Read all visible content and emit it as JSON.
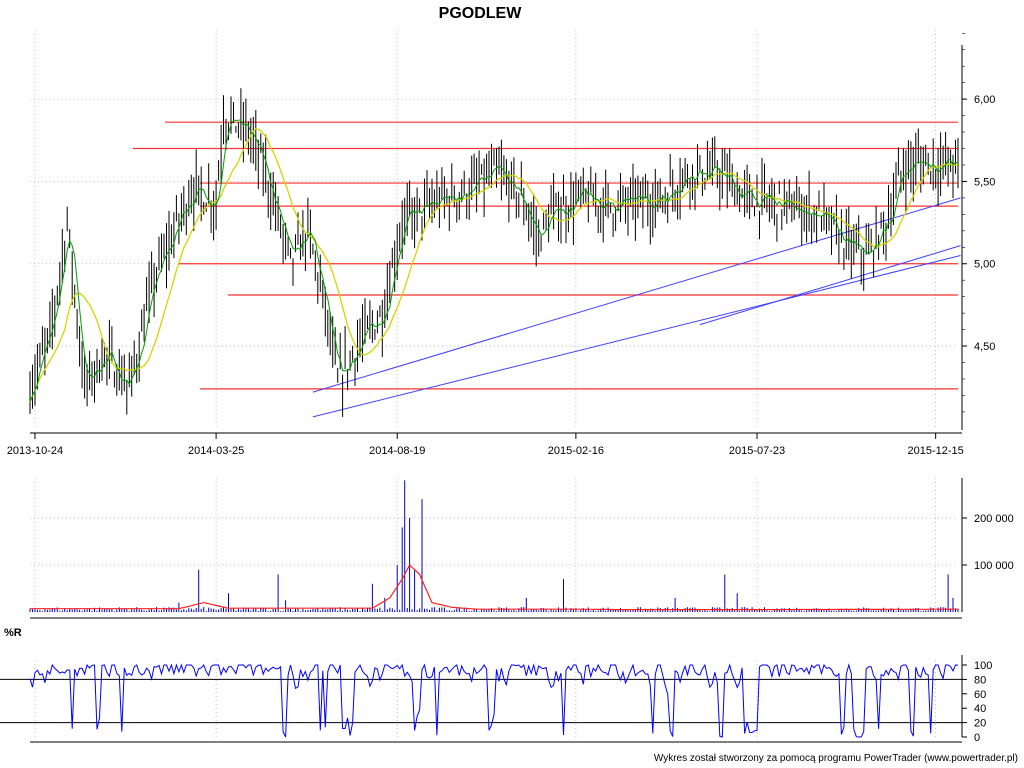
{
  "chart_data": [
    {
      "type": "ohlc",
      "title": "PGODLEW",
      "x_tick_labels": [
        "2013-10-24",
        "2014-03-25",
        "2014-08-19",
        "2015-02-16",
        "2015-07-23",
        "2015-12-15"
      ],
      "x_tick_index": [
        2,
        75,
        148,
        220,
        293,
        365
      ],
      "n_bars": 375,
      "y_tick_labels": [
        "6,00",
        "5,50",
        "5,00",
        "4,50"
      ],
      "y_tick_values": [
        6.0,
        5.5,
        5.0,
        4.5
      ],
      "ylim": [
        3.99,
        6.42
      ],
      "grid": true,
      "colors": {
        "bars": "#000000",
        "ma_short": "#00a000",
        "ma_long": "#d4d400",
        "resistance": "#ff3030",
        "trend": "#4040ff"
      },
      "key_points": [
        [
          0,
          4.25
        ],
        [
          8,
          4.55
        ],
        [
          15,
          5.25
        ],
        [
          22,
          4.25
        ],
        [
          30,
          4.45
        ],
        [
          40,
          4.25
        ],
        [
          50,
          4.9
        ],
        [
          65,
          5.45
        ],
        [
          75,
          5.38
        ],
        [
          78,
          5.9
        ],
        [
          88,
          5.8
        ],
        [
          95,
          5.55
        ],
        [
          105,
          5.0
        ],
        [
          112,
          5.2
        ],
        [
          118,
          4.8
        ],
        [
          124,
          4.28
        ],
        [
          132,
          4.5
        ],
        [
          142,
          4.7
        ],
        [
          150,
          5.25
        ],
        [
          165,
          5.38
        ],
        [
          178,
          5.45
        ],
        [
          188,
          5.55
        ],
        [
          198,
          5.4
        ],
        [
          205,
          5.15
        ],
        [
          210,
          5.3
        ],
        [
          222,
          5.4
        ],
        [
          235,
          5.35
        ],
        [
          255,
          5.4
        ],
        [
          265,
          5.55
        ],
        [
          278,
          5.55
        ],
        [
          288,
          5.4
        ],
        [
          305,
          5.35
        ],
        [
          318,
          5.3
        ],
        [
          330,
          5.1
        ],
        [
          338,
          5.05
        ],
        [
          345,
          5.25
        ],
        [
          352,
          5.58
        ],
        [
          360,
          5.62
        ],
        [
          365,
          5.6
        ],
        [
          375,
          5.6
        ]
      ],
      "horizontal_levels": [
        5.86,
        5.7,
        5.49,
        5.35,
        5.0,
        4.81,
        4.24
      ],
      "trend_lines": [
        {
          "from": [
            114,
            4.22
          ],
          "to": [
            375,
            5.4
          ]
        },
        {
          "from": [
            114,
            4.07
          ],
          "to": [
            375,
            5.05
          ]
        },
        {
          "from": [
            270,
            4.63
          ],
          "to": [
            375,
            5.11
          ]
        }
      ]
    },
    {
      "type": "bar",
      "title": "",
      "y_tick_labels": [
        "200 000",
        "100 000"
      ],
      "y_tick_values": [
        200000,
        100000
      ],
      "ylim": [
        0,
        285000
      ],
      "spikes": [
        [
          60,
          20000
        ],
        [
          68,
          90000
        ],
        [
          80,
          40000
        ],
        [
          100,
          80000
        ],
        [
          103,
          25000
        ],
        [
          138,
          60000
        ],
        [
          143,
          30000
        ],
        [
          148,
          100000
        ],
        [
          150,
          180000
        ],
        [
          151,
          280000
        ],
        [
          153,
          200000
        ],
        [
          155,
          90000
        ],
        [
          158,
          240000
        ],
        [
          200,
          30000
        ],
        [
          215,
          70000
        ],
        [
          260,
          30000
        ],
        [
          280,
          80000
        ],
        [
          285,
          40000
        ],
        [
          370,
          80000
        ],
        [
          372,
          30000
        ]
      ],
      "red_line_key_points": [
        [
          0,
          7000
        ],
        [
          60,
          7000
        ],
        [
          70,
          20000
        ],
        [
          80,
          8000
        ],
        [
          138,
          8000
        ],
        [
          145,
          30000
        ],
        [
          150,
          70000
        ],
        [
          153,
          100000
        ],
        [
          157,
          80000
        ],
        [
          162,
          20000
        ],
        [
          170,
          10000
        ],
        [
          180,
          6000
        ],
        [
          220,
          6000
        ],
        [
          240,
          5000
        ],
        [
          290,
          5000
        ],
        [
          375,
          6000
        ]
      ]
    },
    {
      "type": "line",
      "title": "%R",
      "y_tick_labels": [
        "100",
        "80",
        "60",
        "40",
        "20",
        "0"
      ],
      "y_tick_values": [
        100,
        80,
        60,
        40,
        20,
        0
      ],
      "ylim": [
        0,
        100
      ],
      "reference_lines": [
        80,
        20
      ],
      "color": "#0000ff"
    }
  ],
  "footer": "Wykres został stworzony za pomocą programu PowerTrader (www.powertrader.pl)"
}
